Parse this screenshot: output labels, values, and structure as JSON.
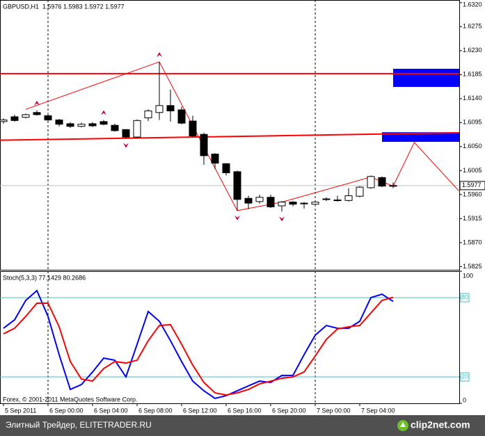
{
  "chart_data": [
    {
      "type": "candlestick",
      "title": "GBPUSD,H1  1.5976 1.5983 1.5972 1.5977",
      "categories": [
        "5 Sep 2011",
        null,
        null,
        null,
        "6 Sep 00:00",
        null,
        null,
        null,
        "6 Sep 04:00",
        null,
        null,
        null,
        "6 Sep 08:00",
        null,
        null,
        null,
        "6 Sep 12:00",
        null,
        null,
        null,
        "6 Sep 16:00",
        null,
        null,
        null,
        "6 Sep 20:00",
        null,
        null,
        null,
        "7 Sep 00:00",
        null,
        null,
        null,
        "7 Sep 04:00",
        null,
        null,
        null
      ],
      "open": [
        1.6097,
        1.6106,
        1.6105,
        1.6114,
        1.6108,
        1.61,
        1.6093,
        1.6088,
        1.6093,
        1.6097,
        1.609,
        1.6082,
        1.6068,
        1.6104,
        1.6114,
        1.6127,
        1.6119,
        1.6098,
        1.6073,
        1.6036,
        1.6018,
        1.6003,
        1.5953,
        1.5947,
        1.5955,
        1.5939,
        1.5946,
        1.5944,
        1.5942,
        1.5952,
        1.595,
        1.5949,
        1.5957,
        1.5973,
        1.5992,
        1.5976
      ],
      "high": [
        1.6103,
        1.611,
        1.6112,
        1.6118,
        1.6112,
        1.6102,
        1.6096,
        1.6095,
        1.6096,
        1.61,
        1.6093,
        1.6083,
        1.6101,
        1.612,
        1.6209,
        1.6157,
        1.6125,
        1.6108,
        1.6076,
        1.6038,
        1.6019,
        1.6005,
        1.5958,
        1.596,
        1.596,
        1.5948,
        1.5948,
        1.5946,
        1.5948,
        1.5955,
        1.5958,
        1.5972,
        1.5976,
        1.5996,
        1.5994,
        1.5983
      ],
      "low": [
        1.6093,
        1.6097,
        1.6103,
        1.6108,
        1.6098,
        1.6088,
        1.6085,
        1.6086,
        1.6087,
        1.609,
        1.6078,
        1.6066,
        1.6066,
        1.6098,
        1.61,
        1.6097,
        1.6092,
        1.6068,
        1.6016,
        1.6008,
        1.5996,
        1.593,
        1.5933,
        1.5943,
        1.5935,
        1.5928,
        1.5938,
        1.5934,
        1.594,
        1.5948,
        1.5947,
        1.5947,
        1.5955,
        1.5971,
        1.5974,
        1.5972
      ],
      "close": [
        1.61,
        1.6099,
        1.611,
        1.611,
        1.61,
        1.6092,
        1.6088,
        1.6092,
        1.6089,
        1.6092,
        1.608,
        1.6068,
        1.6099,
        1.6117,
        1.6127,
        1.6117,
        1.6094,
        1.607,
        1.6033,
        1.6019,
        1.6001,
        1.5951,
        1.5944,
        1.5955,
        1.5937,
        1.5946,
        1.5942,
        1.5943,
        1.5946,
        1.5951,
        1.5949,
        1.5958,
        1.5974,
        1.5994,
        1.5976,
        1.5977
      ],
      "up_color": "#ffffff",
      "down_color": "#000000",
      "xlim": [
        -0.3125,
        40.9375
      ],
      "ylim": [
        1.5819,
        1.6325
      ],
      "yticks": [
        {
          "value": 1.632,
          "label": "1.6320"
        },
        {
          "value": 1.6275,
          "label": "1.6275"
        },
        {
          "value": 1.623,
          "label": "1.6230"
        },
        {
          "value": 1.6185,
          "label": "1.6185"
        },
        {
          "value": 1.614,
          "label": "1.6140"
        },
        {
          "value": 1.6095,
          "label": "1.6095"
        },
        {
          "value": 1.605,
          "label": "1.6050"
        },
        {
          "value": 1.6005,
          "label": "1.6005"
        },
        {
          "value": 1.596,
          "label": "1.5960"
        },
        {
          "value": 1.5915,
          "label": "1.5915"
        },
        {
          "value": 1.587,
          "label": "1.5870"
        },
        {
          "value": 1.5825,
          "label": "1.5825"
        }
      ],
      "price_line": {
        "value": 1.5977,
        "label": "1.5977",
        "color": "#c0c0c0"
      },
      "separators": [
        4,
        28
      ],
      "hlines": [
        {
          "value": 1.6187,
          "color": "#ff0000"
        }
      ],
      "trendline": {
        "x": [
          -0.3125,
          40.9375
        ],
        "values": [
          1.6062,
          1.6076
        ],
        "color": "#ff0000"
      },
      "zones": [
        {
          "x": [
            35,
            40.9375
          ],
          "values": [
            1.6162,
            1.6196
          ],
          "color": "#0000ff"
        },
        {
          "x": [
            34,
            40.9375
          ],
          "values": [
            1.6059,
            1.6077
          ],
          "color": "#0000ff"
        }
      ],
      "zigzag": {
        "x": [
          2,
          14,
          21,
          25,
          33,
          35,
          36.9,
          40.9
        ],
        "values": [
          1.612,
          1.6209,
          1.593,
          1.5946,
          1.5993,
          1.5976,
          1.6058,
          1.5967
        ],
        "color": "#ff0000"
      },
      "fractals_up": [
        null,
        null,
        null,
        1.6118,
        null,
        null,
        null,
        null,
        null,
        1.61,
        null,
        null,
        null,
        null,
        1.6209,
        null,
        null,
        null,
        null,
        null,
        null,
        null,
        null,
        null,
        null,
        null,
        null,
        null,
        null,
        null,
        null,
        null,
        null,
        null,
        null,
        null
      ],
      "fractals_down": [
        null,
        null,
        null,
        null,
        null,
        null,
        null,
        null,
        null,
        null,
        null,
        1.6066,
        null,
        null,
        null,
        null,
        null,
        null,
        null,
        null,
        null,
        1.593,
        null,
        null,
        null,
        1.5928,
        null,
        null,
        null,
        null,
        null,
        null,
        null,
        null,
        null,
        null
      ],
      "fractal_color": "#c00040"
    },
    {
      "type": "line",
      "title": "Stoch(5,3,3) 77.1429 80.2686",
      "annotation": "Forex, © 2001-2011 MetaQuotes Software Corp.",
      "xlim": [
        -0.3125,
        40.9375
      ],
      "ylim": [
        0,
        100
      ],
      "yticks": [
        0,
        20,
        80,
        100
      ],
      "levels": [
        20,
        80
      ],
      "level_color": "#40c0c0",
      "series": [
        {
          "color": "#0000ff",
          "values": [
            56.8,
            63.2,
            77.9,
            85.3,
            65.8,
            36.8,
            10.5,
            14.2,
            23.7,
            34.2,
            32.6,
            20.0,
            44.7,
            69.5,
            62.1,
            47.4,
            31.6,
            16.8,
            9.5,
            3.7,
            5.8,
            9.5,
            13.2,
            16.8,
            15.8,
            21.1,
            21.1,
            36.8,
            51.6,
            58.9,
            56.8,
            56.8,
            62.1,
            80.0,
            82.6,
            77.1429
          ]
        },
        {
          "color": "#ff0000",
          "values": [
            52.6,
            56.8,
            65.8,
            75.8,
            75.8,
            57.9,
            31.6,
            18.4,
            16.8,
            26.3,
            31.6,
            30.5,
            32.6,
            47.4,
            58.9,
            59.5,
            44.7,
            28.9,
            15.8,
            7.9,
            6.3,
            7.9,
            10.5,
            14.7,
            16.8,
            18.9,
            20.0,
            23.7,
            35.8,
            48.4,
            56.3,
            57.9,
            58.9,
            68.4,
            77.9,
            80.2686
          ]
        }
      ]
    }
  ],
  "footer": {
    "text": "Элитный Трейдер, ELITETRADER.RU",
    "logo": "clip2net.com"
  }
}
